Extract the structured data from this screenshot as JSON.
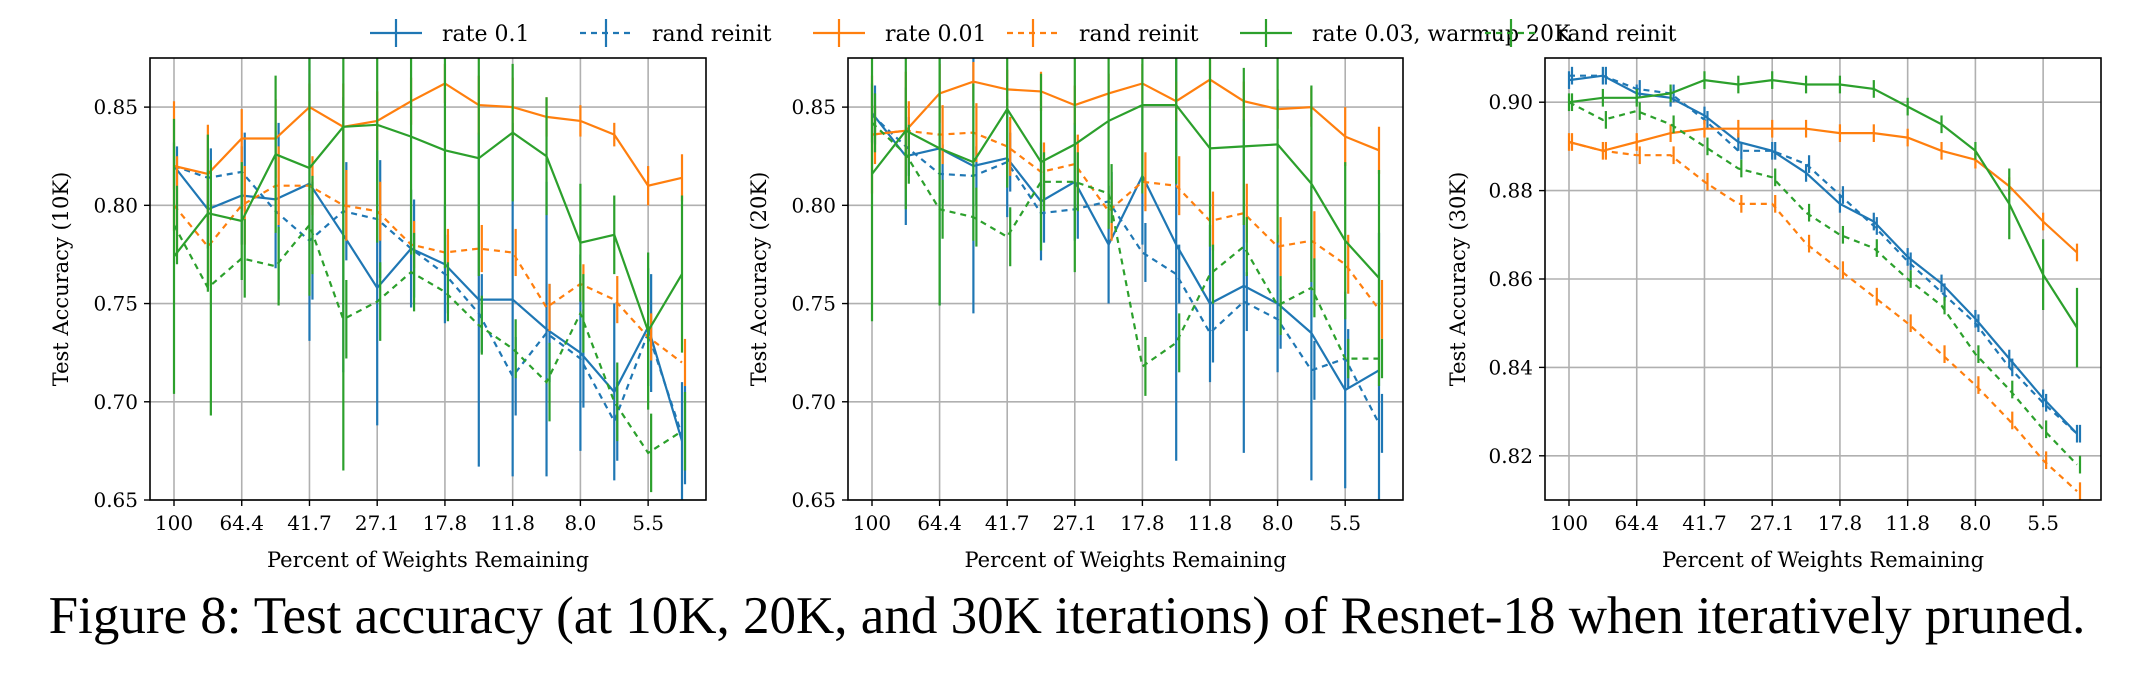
{
  "caption": "Figure 8: Test accuracy (at 10K, 20K, and 30K iterations) of Resnet-18 when iteratively pruned.",
  "legend": [
    {
      "label": "rate 0.1",
      "color": "#1f77b4",
      "dashed": false
    },
    {
      "label": "rand reinit",
      "color": "#1f77b4",
      "dashed": true
    },
    {
      "label": "rate 0.01",
      "color": "#ff7f0e",
      "dashed": false
    },
    {
      "label": "rand reinit",
      "color": "#ff7f0e",
      "dashed": true
    },
    {
      "label": "rate 0.03, warmup 20K",
      "color": "#2ca02c",
      "dashed": false
    },
    {
      "label": "rand reinit",
      "color": "#2ca02c",
      "dashed": true
    }
  ],
  "chart_data": [
    {
      "type": "line",
      "title": "",
      "xlabel": "Percent of Weights Remaining",
      "ylabel": "Test Accuracy (10K)",
      "x": [
        100,
        80,
        64.4,
        51.3,
        41.7,
        32.8,
        27.1,
        21.8,
        17.8,
        14.1,
        11.8,
        9.9,
        8.0,
        6.6,
        5.5,
        4.4
      ],
      "xticks": [
        "100",
        "64.4",
        "41.7",
        "27.1",
        "17.8",
        "11.8",
        "8.0",
        "5.5"
      ],
      "ylim": [
        0.65,
        0.875
      ],
      "yticks": [
        0.65,
        0.7,
        0.75,
        0.8,
        0.85
      ],
      "ytick_labels": [
        "0.65",
        "0.70",
        "0.75",
        "0.80",
        "0.85"
      ],
      "grid": true,
      "series": [
        {
          "name": "rate 0.1",
          "color": "#1f77b4",
          "dashed": false,
          "values": [
            0.82,
            0.798,
            0.805,
            0.803,
            0.811,
            0.785,
            0.758,
            0.778,
            0.77,
            0.752,
            0.752,
            0.737,
            0.725,
            0.705,
            0.738,
            0.68
          ],
          "err": [
            0.012,
            0.02,
            0.025,
            0.035,
            0.08,
            0.07,
            0.07,
            0.03,
            0.03,
            0.085,
            0.09,
            0.075,
            0.05,
            0.045,
            0.03,
            0.03
          ]
        },
        {
          "name": "rand reinit",
          "color": "#1f77b4",
          "dashed": true,
          "values": [
            0.82,
            0.814,
            0.817,
            0.797,
            0.782,
            0.797,
            0.793,
            0.778,
            0.765,
            0.745,
            0.713,
            0.735,
            0.722,
            0.69,
            0.735,
            0.683
          ],
          "err": [
            0.01,
            0.015,
            0.02,
            0.045,
            0.03,
            0.025,
            0.03,
            0.025,
            0.02,
            0.02,
            0.02,
            0.025,
            0.025,
            0.02,
            0.03,
            0.025
          ]
        },
        {
          "name": "rate 0.01",
          "color": "#ff7f0e",
          "dashed": false,
          "values": [
            0.82,
            0.816,
            0.834,
            0.834,
            0.85,
            0.84,
            0.843,
            0.853,
            0.862,
            0.851,
            0.85,
            0.845,
            0.843,
            0.836,
            0.81,
            0.814
          ],
          "err": [
            0.033,
            0.025,
            0.015,
            0.02,
            0.012,
            0.022,
            0.015,
            0.012,
            0.01,
            0.015,
            0.015,
            0.01,
            0.008,
            0.006,
            0.01,
            0.012
          ]
        },
        {
          "name": "rand reinit",
          "color": "#ff7f0e",
          "dashed": true,
          "values": [
            0.8,
            0.779,
            0.8,
            0.81,
            0.81,
            0.8,
            0.797,
            0.78,
            0.776,
            0.778,
            0.776,
            0.748,
            0.76,
            0.752,
            0.733,
            0.72
          ],
          "err": [
            0.025,
            0.02,
            0.02,
            0.02,
            0.015,
            0.018,
            0.015,
            0.012,
            0.012,
            0.012,
            0.012,
            0.012,
            0.01,
            0.012,
            0.012,
            0.012
          ]
        },
        {
          "name": "rate 0.03, warmup 20K",
          "color": "#2ca02c",
          "dashed": false,
          "values": [
            0.774,
            0.796,
            0.792,
            0.826,
            0.819,
            0.84,
            0.841,
            0.835,
            0.828,
            0.824,
            0.837,
            0.825,
            0.781,
            0.785,
            0.736,
            0.765
          ],
          "err": [
            0.07,
            0.04,
            0.03,
            0.04,
            0.065,
            0.175,
            0.06,
            0.06,
            0.06,
            0.06,
            0.035,
            0.03,
            0.03,
            0.02,
            0.04,
            0.04
          ]
        },
        {
          "name": "rand reinit",
          "color": "#2ca02c",
          "dashed": true,
          "values": [
            0.79,
            0.758,
            0.773,
            0.769,
            0.79,
            0.742,
            0.751,
            0.766,
            0.756,
            0.739,
            0.727,
            0.71,
            0.745,
            0.7,
            0.674,
            0.685
          ],
          "err": [
            0.02,
            0.065,
            0.02,
            0.02,
            0.025,
            0.02,
            0.02,
            0.02,
            0.015,
            0.015,
            0.015,
            0.02,
            0.02,
            0.02,
            0.02,
            0.02
          ]
        }
      ]
    },
    {
      "type": "line",
      "title": "",
      "xlabel": "Percent of Weights Remaining",
      "ylabel": "Test Accuracy (20K)",
      "x": [
        100,
        80,
        64.4,
        51.3,
        41.7,
        32.8,
        27.1,
        21.8,
        17.8,
        14.1,
        11.8,
        9.9,
        8.0,
        6.6,
        5.5,
        4.4
      ],
      "xticks": [
        "100",
        "64.4",
        "41.7",
        "27.1",
        "17.8",
        "11.8",
        "8.0",
        "5.5"
      ],
      "ylim": [
        0.65,
        0.875
      ],
      "yticks": [
        0.65,
        0.7,
        0.75,
        0.8,
        0.85
      ],
      "ytick_labels": [
        "0.65",
        "0.70",
        "0.75",
        "0.80",
        "0.85"
      ],
      "grid": true,
      "series": [
        {
          "name": "rate 0.1",
          "color": "#1f77b4",
          "dashed": false,
          "values": [
            0.847,
            0.825,
            0.829,
            0.82,
            0.824,
            0.802,
            0.812,
            0.78,
            0.815,
            0.78,
            0.75,
            0.759,
            0.75,
            0.735,
            0.706,
            0.716
          ],
          "err": [
            0.015,
            0.035,
            0.08,
            0.075,
            0.03,
            0.03,
            0.03,
            0.03,
            0.035,
            0.11,
            0.04,
            0.085,
            0.035,
            0.075,
            0.05,
            0.07
          ]
        },
        {
          "name": "rand reinit",
          "color": "#1f77b4",
          "dashed": true,
          "values": [
            0.846,
            0.83,
            0.816,
            0.815,
            0.822,
            0.796,
            0.798,
            0.802,
            0.776,
            0.765,
            0.735,
            0.751,
            0.742,
            0.716,
            0.722,
            0.689
          ],
          "err": [
            0.015,
            0.015,
            0.015,
            0.015,
            0.015,
            0.015,
            0.015,
            0.015,
            0.015,
            0.015,
            0.015,
            0.015,
            0.015,
            0.015,
            0.015,
            0.015
          ]
        },
        {
          "name": "rate 0.01",
          "color": "#ff7f0e",
          "dashed": false,
          "values": [
            0.836,
            0.838,
            0.857,
            0.863,
            0.859,
            0.858,
            0.851,
            0.857,
            0.862,
            0.853,
            0.864,
            0.853,
            0.849,
            0.85,
            0.835,
            0.828
          ],
          "err": [
            0.03,
            0.03,
            0.015,
            0.01,
            0.01,
            0.01,
            0.01,
            0.01,
            0.01,
            0.01,
            0.01,
            0.01,
            0.01,
            0.01,
            0.015,
            0.012
          ]
        },
        {
          "name": "rand reinit",
          "color": "#ff7f0e",
          "dashed": true,
          "values": [
            0.836,
            0.838,
            0.836,
            0.837,
            0.83,
            0.817,
            0.821,
            0.797,
            0.812,
            0.81,
            0.792,
            0.796,
            0.779,
            0.782,
            0.77,
            0.747
          ],
          "err": [
            0.015,
            0.015,
            0.015,
            0.015,
            0.015,
            0.015,
            0.015,
            0.015,
            0.015,
            0.015,
            0.015,
            0.015,
            0.015,
            0.015,
            0.015,
            0.015
          ]
        },
        {
          "name": "rate 0.03, warmup 20K",
          "color": "#2ca02c",
          "dashed": false,
          "values": [
            0.816,
            0.838,
            0.829,
            0.822,
            0.849,
            0.822,
            0.831,
            0.843,
            0.851,
            0.851,
            0.829,
            0.83,
            0.831,
            0.811,
            0.782,
            0.763
          ],
          "err": [
            0.075,
            0.04,
            0.08,
            0.04,
            0.04,
            0.045,
            0.065,
            0.055,
            0.045,
            0.04,
            0.05,
            0.04,
            0.05,
            0.05,
            0.04,
            0.055
          ]
        },
        {
          "name": "rand reinit",
          "color": "#2ca02c",
          "dashed": true,
          "values": [
            0.842,
            0.826,
            0.798,
            0.794,
            0.784,
            0.812,
            0.812,
            0.806,
            0.718,
            0.73,
            0.765,
            0.779,
            0.749,
            0.758,
            0.722,
            0.722
          ],
          "err": [
            0.015,
            0.015,
            0.015,
            0.015,
            0.015,
            0.015,
            0.015,
            0.015,
            0.015,
            0.015,
            0.015,
            0.015,
            0.015,
            0.015,
            0.01,
            0.01
          ]
        }
      ]
    },
    {
      "type": "line",
      "title": "",
      "xlabel": "Percent of Weights Remaining",
      "ylabel": "Test Accuracy (30K)",
      "x": [
        100,
        80,
        64.4,
        51.3,
        41.7,
        32.8,
        27.1,
        21.8,
        17.8,
        14.1,
        11.8,
        9.9,
        8.0,
        6.6,
        5.5,
        4.4
      ],
      "xticks": [
        "100",
        "64.4",
        "41.7",
        "27.1",
        "17.8",
        "11.8",
        "8.0",
        "5.5"
      ],
      "ylim": [
        0.81,
        0.91
      ],
      "yticks": [
        0.82,
        0.84,
        0.86,
        0.88,
        0.9
      ],
      "ytick_labels": [
        "0.82",
        "0.84",
        "0.86",
        "0.88",
        "0.90"
      ],
      "grid": true,
      "series": [
        {
          "name": "rate 0.1",
          "color": "#1f77b4",
          "dashed": false,
          "values": [
            0.905,
            0.906,
            0.902,
            0.901,
            0.897,
            0.891,
            0.889,
            0.884,
            0.877,
            0.873,
            0.865,
            0.859,
            0.851,
            0.842,
            0.833,
            0.825
          ],
          "err": [
            0.002,
            0.002,
            0.002,
            0.002,
            0.002,
            0.002,
            0.002,
            0.002,
            0.002,
            0.002,
            0.002,
            0.002,
            0.002,
            0.002,
            0.002,
            0.002
          ]
        },
        {
          "name": "rand reinit",
          "color": "#1f77b4",
          "dashed": true,
          "values": [
            0.906,
            0.906,
            0.903,
            0.902,
            0.896,
            0.889,
            0.889,
            0.886,
            0.879,
            0.872,
            0.864,
            0.857,
            0.85,
            0.84,
            0.832,
            0.825
          ],
          "err": [
            0.002,
            0.002,
            0.002,
            0.002,
            0.002,
            0.002,
            0.002,
            0.002,
            0.002,
            0.002,
            0.002,
            0.002,
            0.002,
            0.002,
            0.002,
            0.002
          ]
        },
        {
          "name": "rate 0.01",
          "color": "#ff7f0e",
          "dashed": false,
          "values": [
            0.891,
            0.889,
            0.891,
            0.893,
            0.894,
            0.894,
            0.894,
            0.894,
            0.893,
            0.893,
            0.892,
            0.889,
            0.887,
            0.881,
            0.873,
            0.866
          ],
          "err": [
            0.002,
            0.002,
            0.002,
            0.002,
            0.002,
            0.002,
            0.002,
            0.002,
            0.002,
            0.002,
            0.002,
            0.002,
            0.002,
            0.002,
            0.002,
            0.002
          ]
        },
        {
          "name": "rand reinit",
          "color": "#ff7f0e",
          "dashed": true,
          "values": [
            0.891,
            0.889,
            0.888,
            0.888,
            0.882,
            0.877,
            0.877,
            0.868,
            0.862,
            0.856,
            0.85,
            0.843,
            0.836,
            0.828,
            0.819,
            0.812
          ],
          "err": [
            0.002,
            0.002,
            0.002,
            0.002,
            0.002,
            0.002,
            0.002,
            0.002,
            0.002,
            0.002,
            0.002,
            0.002,
            0.002,
            0.002,
            0.002,
            0.002
          ]
        },
        {
          "name": "rate 0.03, warmup 20K",
          "color": "#2ca02c",
          "dashed": false,
          "values": [
            0.9,
            0.901,
            0.901,
            0.902,
            0.905,
            0.904,
            0.905,
            0.904,
            0.904,
            0.903,
            0.899,
            0.895,
            0.889,
            0.877,
            0.861,
            0.849
          ],
          "err": [
            0.002,
            0.002,
            0.002,
            0.002,
            0.002,
            0.002,
            0.002,
            0.002,
            0.002,
            0.002,
            0.002,
            0.002,
            0.002,
            0.008,
            0.008,
            0.009
          ]
        },
        {
          "name": "rand reinit",
          "color": "#2ca02c",
          "dashed": true,
          "values": [
            0.9,
            0.896,
            0.898,
            0.895,
            0.89,
            0.885,
            0.883,
            0.875,
            0.87,
            0.867,
            0.86,
            0.854,
            0.843,
            0.835,
            0.826,
            0.818
          ],
          "err": [
            0.002,
            0.002,
            0.002,
            0.002,
            0.002,
            0.002,
            0.002,
            0.002,
            0.002,
            0.002,
            0.002,
            0.002,
            0.002,
            0.002,
            0.002,
            0.002
          ]
        }
      ]
    }
  ]
}
